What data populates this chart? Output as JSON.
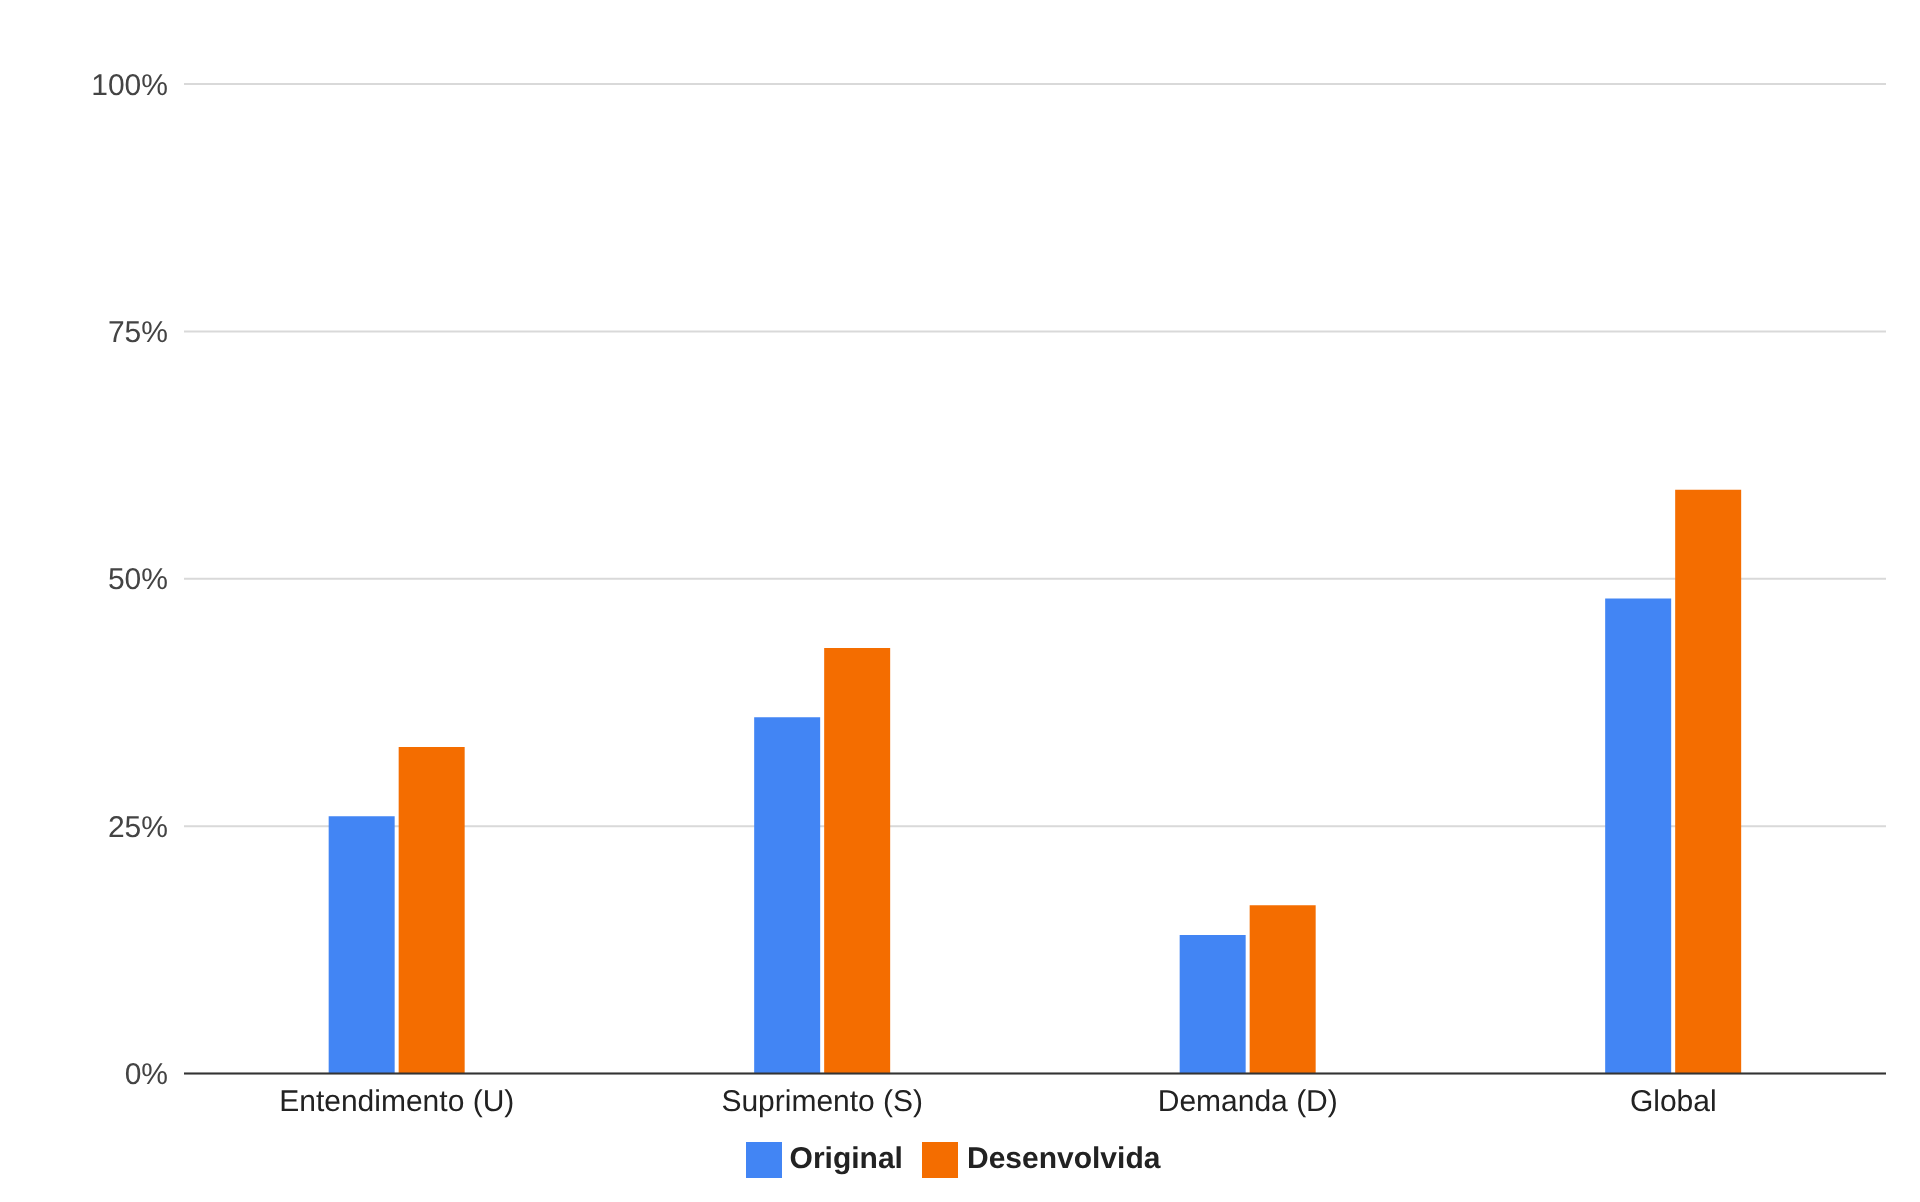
{
  "chart_data": {
    "type": "bar",
    "categories": [
      "Entendimento (U)",
      "Suprimento (S)",
      "Demanda (D)",
      "Global"
    ],
    "series": [
      {
        "name": "Original",
        "color": "#4285f4",
        "values": [
          26,
          36,
          14,
          48
        ]
      },
      {
        "name": "Desenvolvida",
        "color": "#f46d00",
        "values": [
          33,
          43,
          17,
          59
        ]
      }
    ],
    "ylim": [
      0,
      100
    ],
    "yticks": [
      {
        "value": 0,
        "label": "0%"
      },
      {
        "value": 25,
        "label": "25%"
      },
      {
        "value": 50,
        "label": "50%"
      },
      {
        "value": 75,
        "label": "75%"
      },
      {
        "value": 100,
        "label": "100%"
      }
    ],
    "grid": "y",
    "legend": "bottom"
  }
}
